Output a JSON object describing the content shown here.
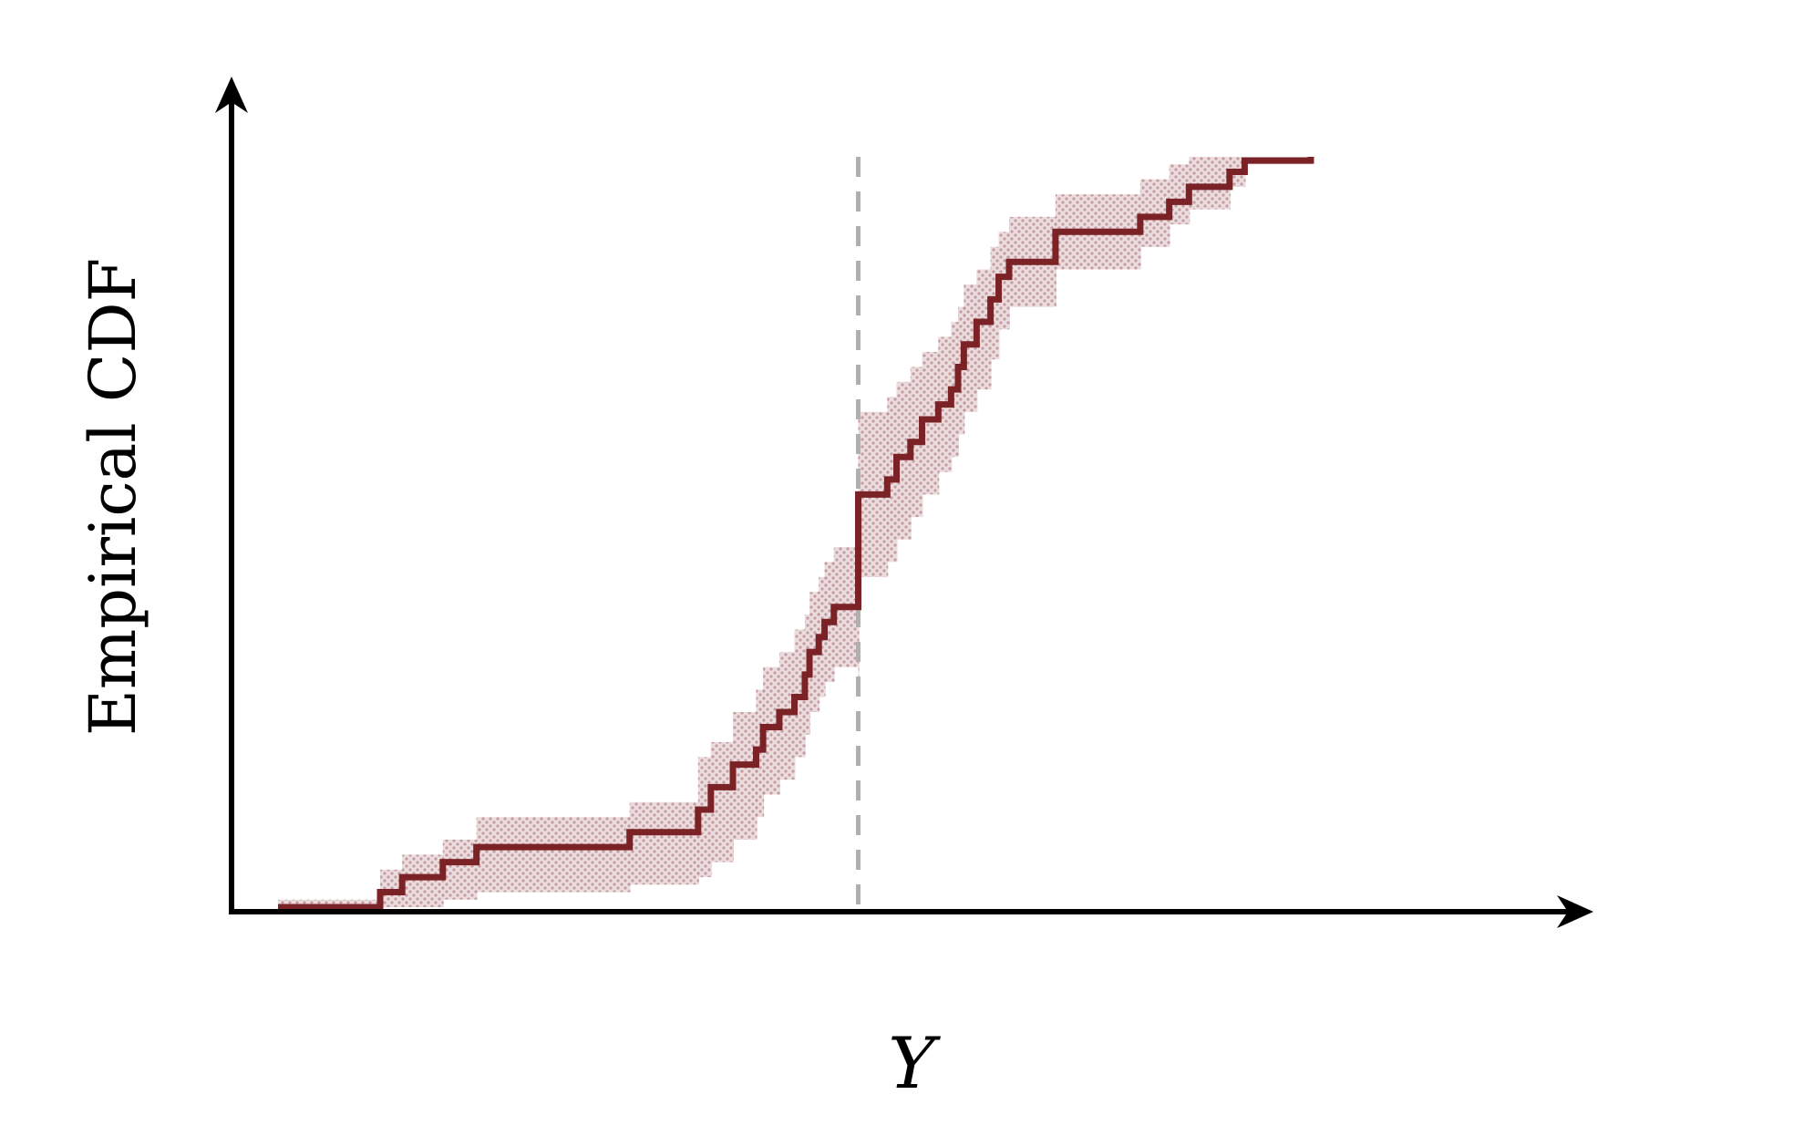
{
  "chart_data": {
    "type": "line",
    "title": "",
    "xlabel": "Y",
    "ylabel": "Empirical CDF",
    "xlim": [
      0,
      1
    ],
    "ylim": [
      0,
      1
    ],
    "grid": false,
    "legend": "none",
    "reference_line": {
      "x": 0.5,
      "style": "dashed",
      "color": "#b0b0b0"
    },
    "series": [
      {
        "color": "#7a2226",
        "band_color": "#c9a3a8",
        "x": [
          0.0,
          0.088,
          0.107,
          0.142,
          0.171,
          0.303,
          0.362,
          0.373,
          0.392,
          0.412,
          0.418,
          0.432,
          0.445,
          0.454,
          0.458,
          0.466,
          0.471,
          0.479,
          0.5,
          0.5,
          0.525,
          0.533,
          0.545,
          0.555,
          0.569,
          0.58,
          0.586,
          0.591,
          0.602,
          0.614,
          0.621,
          0.63,
          0.67,
          0.743,
          0.768,
          0.785,
          0.82,
          0.833,
          0.89
        ],
        "y": [
          0.0,
          0.02,
          0.04,
          0.06,
          0.08,
          0.1,
          0.13,
          0.16,
          0.19,
          0.21,
          0.24,
          0.26,
          0.28,
          0.31,
          0.34,
          0.36,
          0.38,
          0.4,
          0.42,
          0.55,
          0.57,
          0.6,
          0.62,
          0.65,
          0.67,
          0.69,
          0.72,
          0.75,
          0.78,
          0.81,
          0.84,
          0.86,
          0.9,
          0.92,
          0.94,
          0.96,
          0.98,
          0.995,
          1.0
        ],
        "lower": [
          0.0,
          0.0,
          0.0,
          0.01,
          0.02,
          0.03,
          0.04,
          0.06,
          0.09,
          0.12,
          0.15,
          0.17,
          0.2,
          0.23,
          0.26,
          0.28,
          0.3,
          0.32,
          0.3,
          0.44,
          0.46,
          0.49,
          0.52,
          0.55,
          0.58,
          0.6,
          0.63,
          0.66,
          0.69,
          0.73,
          0.77,
          0.8,
          0.85,
          0.88,
          0.91,
          0.93,
          0.96,
          0.99,
          0.995
        ],
        "upper": [
          0.01,
          0.05,
          0.07,
          0.09,
          0.12,
          0.14,
          0.2,
          0.22,
          0.26,
          0.29,
          0.32,
          0.34,
          0.37,
          0.39,
          0.42,
          0.44,
          0.46,
          0.48,
          0.6,
          0.66,
          0.68,
          0.7,
          0.72,
          0.74,
          0.76,
          0.78,
          0.8,
          0.83,
          0.85,
          0.88,
          0.9,
          0.92,
          0.95,
          0.97,
          0.99,
          1.0,
          1.0,
          1.0,
          1.0
        ]
      }
    ]
  }
}
